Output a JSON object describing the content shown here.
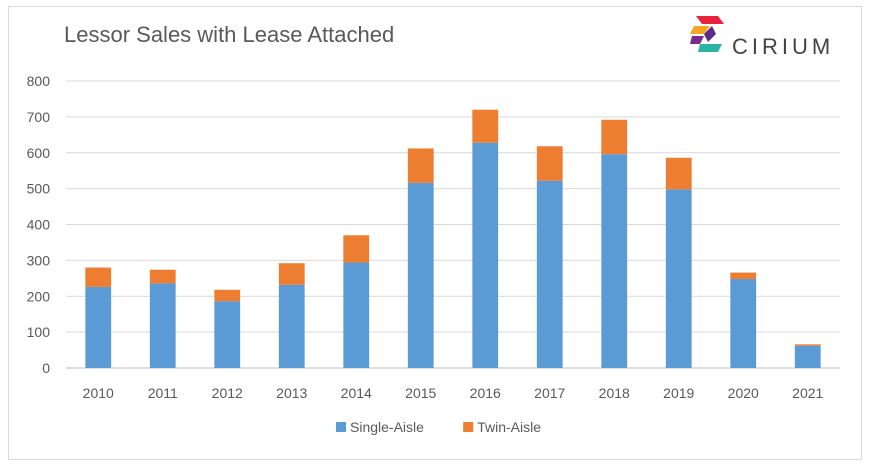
{
  "brand": {
    "name": "CIRIUM",
    "colors": [
      "#e8243c",
      "#f5a623",
      "#5b2d86",
      "#2bb3a6"
    ]
  },
  "chart_data": {
    "type": "bar",
    "stacked": true,
    "title": "Lessor Sales with Lease Attached",
    "xlabel": "",
    "ylabel": "",
    "categories": [
      "2010",
      "2011",
      "2012",
      "2013",
      "2014",
      "2015",
      "2016",
      "2017",
      "2018",
      "2019",
      "2020",
      "2021"
    ],
    "series": [
      {
        "name": "Single-Aisle",
        "color": "#5b9bd5",
        "values": [
          226,
          236,
          186,
          232,
          294,
          516,
          628,
          522,
          596,
          498,
          248,
          62
        ]
      },
      {
        "name": "Twin-Aisle",
        "color": "#ed7d31",
        "values": [
          54,
          38,
          32,
          60,
          76,
          96,
          92,
          96,
          96,
          88,
          18,
          4
        ]
      }
    ],
    "ylim": [
      0,
      800
    ],
    "yticks": [
      0,
      100,
      200,
      300,
      400,
      500,
      600,
      700,
      800
    ],
    "grid": true,
    "legend": "bottom-center"
  }
}
